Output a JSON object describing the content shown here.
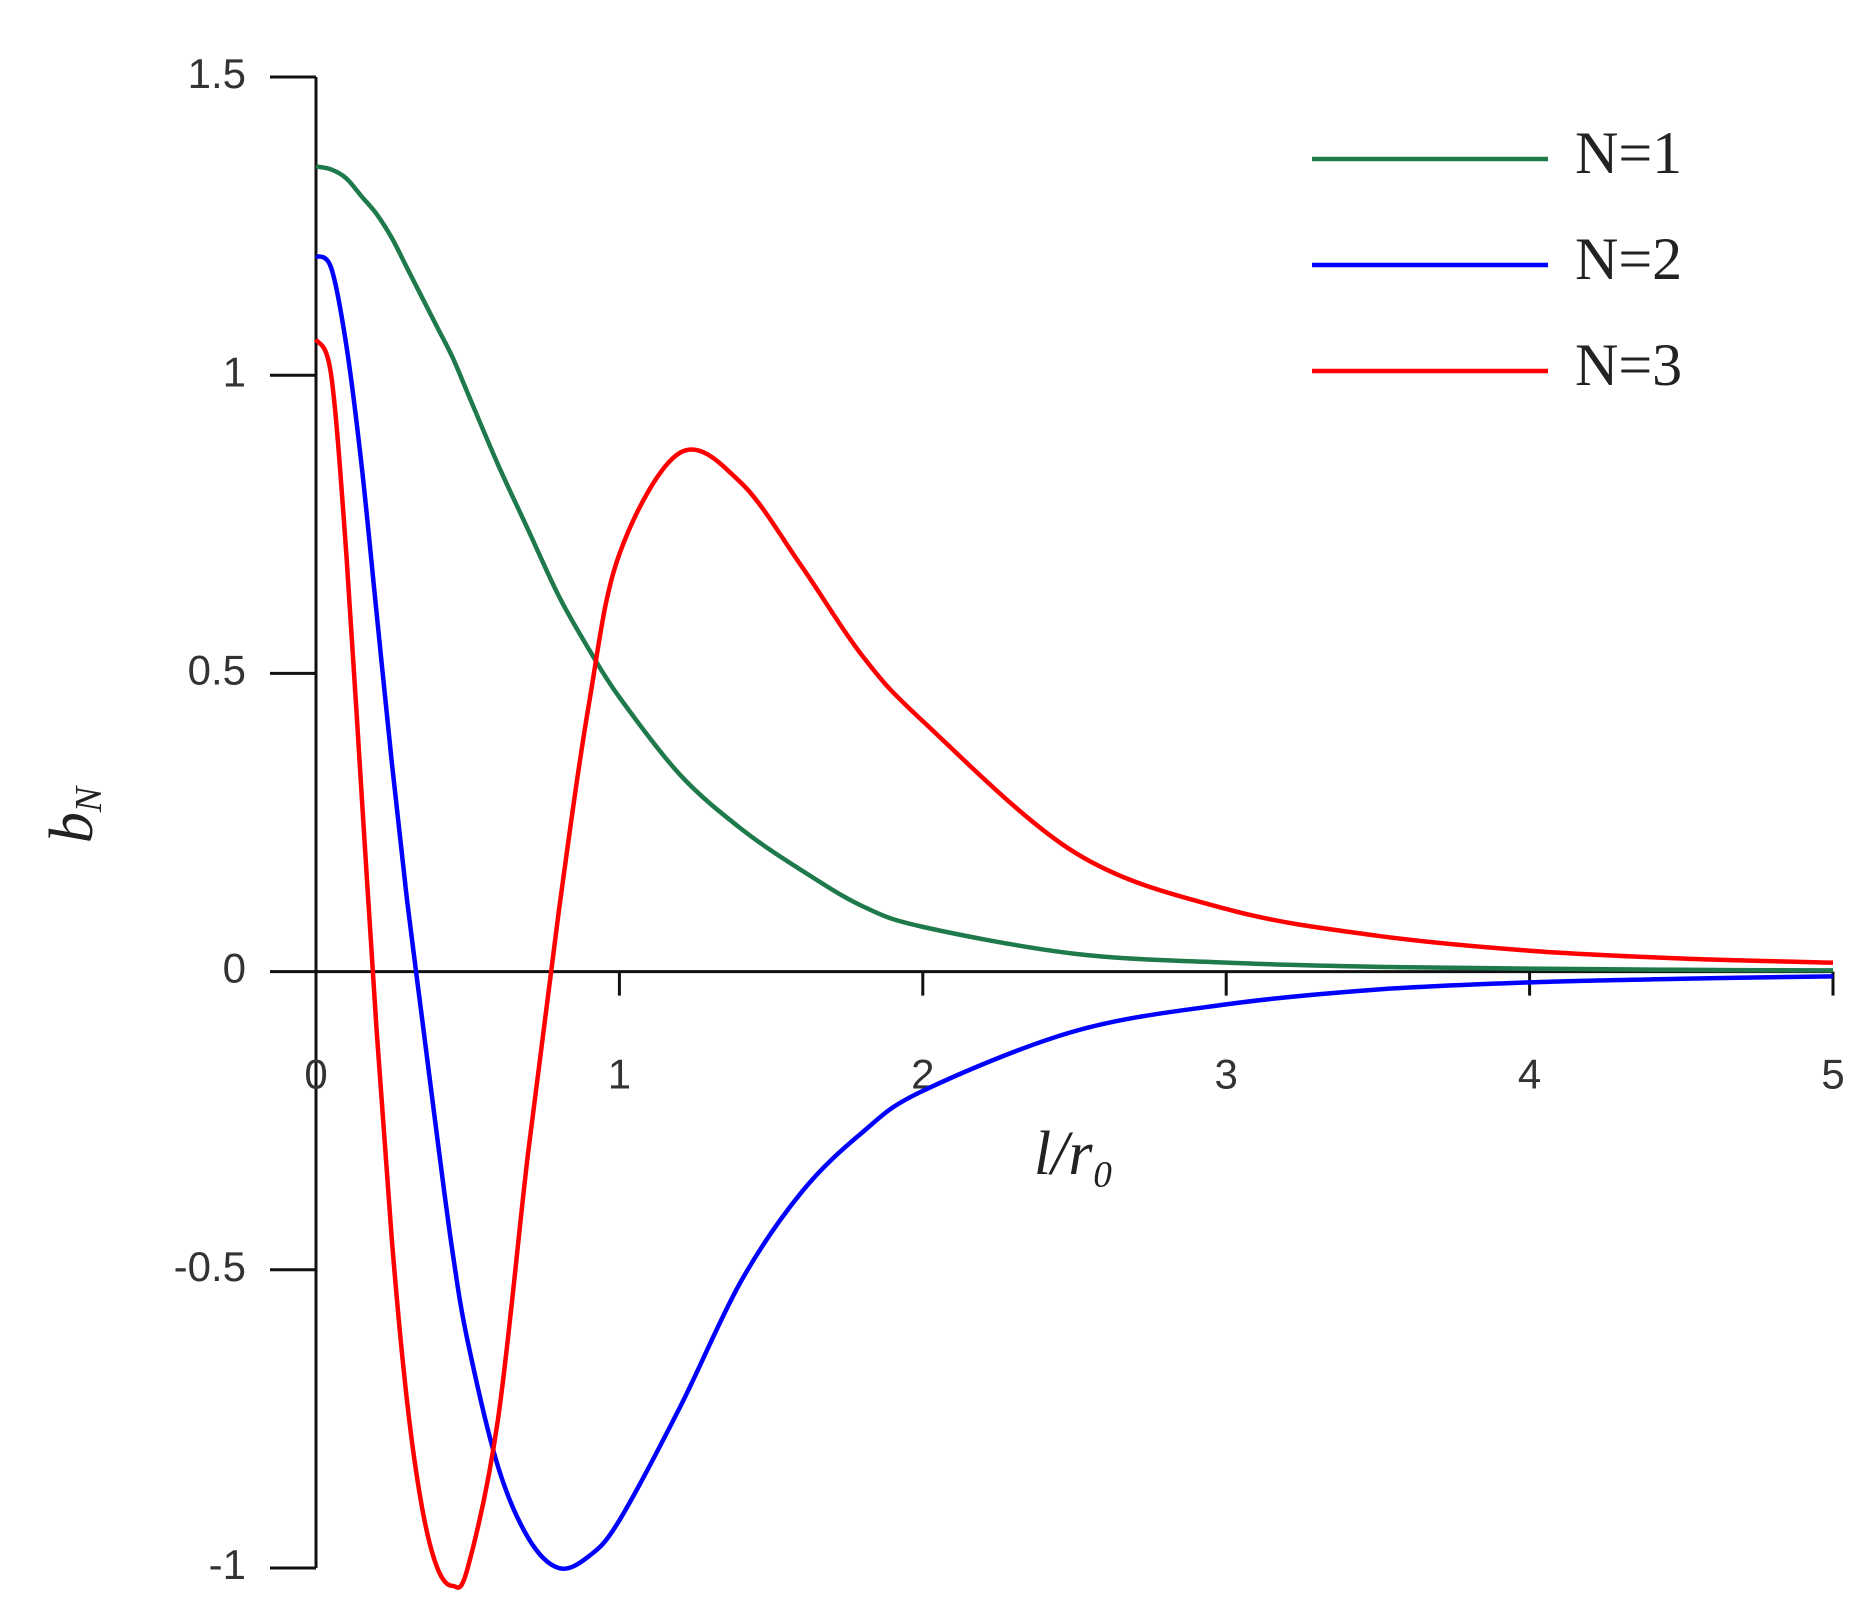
{
  "chart_data": {
    "type": "line",
    "xlabel": "l/r₀",
    "ylabel": {
      "main": "b",
      "sub": "N"
    },
    "x": [
      0,
      0.05,
      0.1,
      0.15,
      0.2,
      0.25,
      0.3,
      0.35,
      0.4,
      0.45,
      0.5,
      0.6,
      0.7,
      0.8,
      0.9,
      1.0,
      1.2,
      1.4,
      1.6,
      1.8,
      2.0,
      2.5,
      3,
      3.5,
      4,
      4.5,
      5
    ],
    "series": [
      {
        "name": "N=1",
        "color": "#1e7a4a",
        "values": [
          1.35,
          1.345,
          1.33,
          1.3,
          1.27,
          1.23,
          1.18,
          1.13,
          1.08,
          1.03,
          0.97,
          0.85,
          0.74,
          0.63,
          0.54,
          0.46,
          0.33,
          0.24,
          0.17,
          0.11,
          0.075,
          0.03,
          0.015,
          0.008,
          0.005,
          0.003,
          0.002
        ]
      },
      {
        "name": "N=2",
        "color": "#0000ff",
        "values": [
          1.2,
          1.18,
          1.05,
          0.85,
          0.6,
          0.35,
          0.12,
          -0.08,
          -0.28,
          -0.47,
          -0.62,
          -0.83,
          -0.95,
          -1.0,
          -0.98,
          -0.92,
          -0.73,
          -0.52,
          -0.37,
          -0.27,
          -0.2,
          -0.1,
          -0.055,
          -0.03,
          -0.018,
          -0.012,
          -0.008
        ]
      },
      {
        "name": "N=3",
        "color": "#ff0000",
        "values": [
          1.06,
          1.0,
          0.7,
          0.3,
          -0.1,
          -0.45,
          -0.72,
          -0.9,
          -1.0,
          -1.03,
          -1.0,
          -0.75,
          -0.3,
          0.1,
          0.45,
          0.7,
          0.87,
          0.82,
          0.68,
          0.53,
          0.42,
          0.2,
          0.105,
          0.06,
          0.035,
          0.022,
          0.015
        ]
      }
    ],
    "xlim": [
      0,
      5
    ],
    "xticks": [
      0,
      1,
      2,
      3,
      4,
      5
    ],
    "ylim": [
      -1,
      1.5
    ],
    "yticks": [
      -1,
      -0.5,
      0,
      0.5,
      1,
      1.5
    ],
    "legend": "upper right"
  }
}
